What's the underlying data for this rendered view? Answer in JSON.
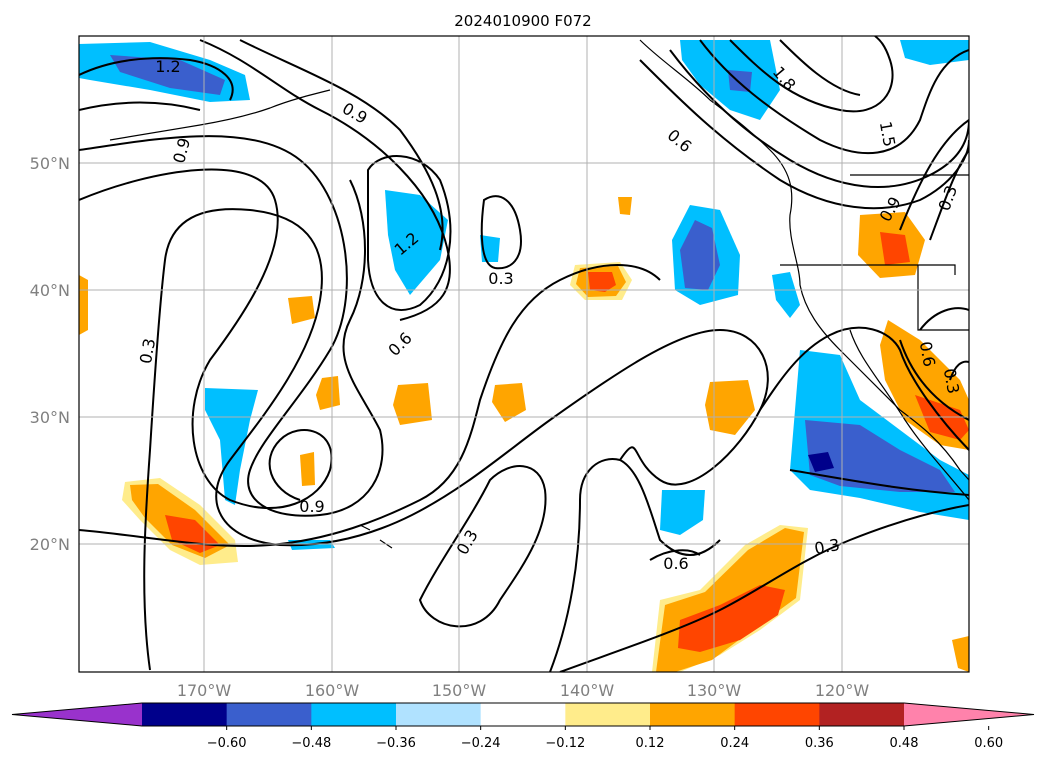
{
  "title": "2024010900 F072",
  "map": {
    "lat_labels": [
      "50°N",
      "40°N",
      "30°N",
      "20°N"
    ],
    "lon_labels": [
      "170°W",
      "160°W",
      "150°W",
      "140°W",
      "130°W",
      "120°W"
    ],
    "contour_labels": [
      "1.2",
      "0.9",
      "0.9",
      "1.2",
      "0.3",
      "0.6",
      "0.3",
      "0.9",
      "0.3",
      "0.6",
      "0.3",
      "0.6",
      "1.8",
      "1.5",
      "0.9",
      "0.3",
      "0.6",
      "0.3"
    ]
  },
  "colorbar": {
    "ticks": [
      "−0.60",
      "−0.48",
      "−0.36",
      "−0.24",
      "−0.12",
      "0.12",
      "0.24",
      "0.36",
      "0.48",
      "0.60"
    ],
    "colors": [
      "#9932cc",
      "#00008b",
      "#3a5fcd",
      "#00bfff",
      "#b0e2ff",
      "#ffffff",
      "#ffec8b",
      "#ffa500",
      "#ff4500",
      "#b22222",
      "#ff82ab"
    ]
  }
}
